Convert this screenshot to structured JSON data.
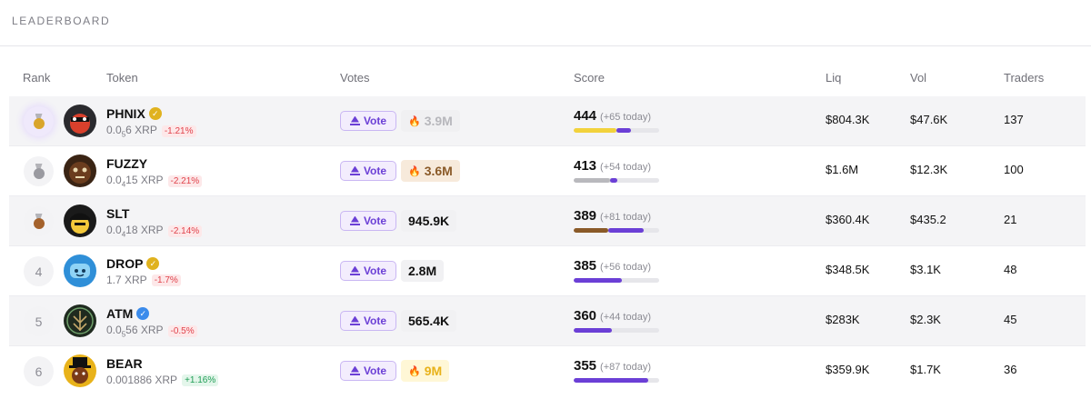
{
  "header": {
    "title": "LEADERBOARD"
  },
  "columns": {
    "rank": "Rank",
    "token": "Token",
    "votes": "Votes",
    "score": "Score",
    "liq": "Liq",
    "vol": "Vol",
    "traders": "Traders"
  },
  "vote_label": "Vote",
  "rows": [
    {
      "rank": "1",
      "name": "PHNIX",
      "verified": "gold",
      "price_pre": "0.0",
      "price_sub": "5",
      "price_post": "6 XRP",
      "change": "-1.21%",
      "votes": "3.9M",
      "votes_style": "faded",
      "score": "444",
      "today": "(+65 today)",
      "liq": "$804.3K",
      "vol": "$47.6K",
      "traders": "137",
      "bar": [
        0.5,
        0.17
      ],
      "bar_color": "#f2d23c"
    },
    {
      "rank": "2",
      "name": "FUZZY",
      "verified": "",
      "price_pre": "0.0",
      "price_sub": "4",
      "price_post": "15 XRP",
      "change": "-2.21%",
      "votes": "3.6M",
      "votes_style": "bronze",
      "score": "413",
      "today": "(+54 today)",
      "liq": "$1.6M",
      "vol": "$12.3K",
      "traders": "100",
      "bar": [
        0.42,
        0.09
      ],
      "bar_color": "#b9b9bd"
    },
    {
      "rank": "3",
      "name": "SLT",
      "verified": "",
      "price_pre": "0.0",
      "price_sub": "4",
      "price_post": "18 XRP",
      "change": "-2.14%",
      "votes": "945.9K",
      "votes_style": "normal",
      "score": "389",
      "today": "(+81 today)",
      "liq": "$360.4K",
      "vol": "$435.2",
      "traders": "21",
      "bar": [
        0.4,
        0.42
      ],
      "bar_color": "#8a5a28"
    },
    {
      "rank": "4",
      "name": "DROP",
      "verified": "gold",
      "price_pre": "1.7 XRP",
      "price_sub": "",
      "price_post": "",
      "change": "-1.7%",
      "votes": "2.8M",
      "votes_style": "normal",
      "score": "385",
      "today": "(+56 today)",
      "liq": "$348.5K",
      "vol": "$3.1K",
      "traders": "48",
      "bar": [
        0,
        0.56
      ],
      "bar_color": "#6b3fd6"
    },
    {
      "rank": "5",
      "name": "ATM",
      "verified": "blue",
      "price_pre": "0.0",
      "price_sub": "5",
      "price_post": "56 XRP",
      "change": "-0.5%",
      "votes": "565.4K",
      "votes_style": "normal",
      "score": "360",
      "today": "(+44 today)",
      "liq": "$283K",
      "vol": "$2.3K",
      "traders": "45",
      "bar": [
        0,
        0.45
      ],
      "bar_color": "#6b3fd6"
    },
    {
      "rank": "6",
      "name": "BEAR",
      "verified": "",
      "price_pre": "0.001886 XRP",
      "price_sub": "",
      "price_post": "",
      "change": "+1.16%",
      "votes": "9M",
      "votes_style": "yellow",
      "score": "355",
      "today": "(+87 today)",
      "liq": "$359.9K",
      "vol": "$1.7K",
      "traders": "36",
      "bar": [
        0,
        0.87
      ],
      "bar_color": "#6b3fd6"
    }
  ],
  "colors": {
    "accent": "#6b3fd6",
    "negative": "#e0424b",
    "positive": "#1f9d55"
  },
  "medals": [
    "#d9a52b",
    "#9a9aa0",
    "#a4622c"
  ]
}
